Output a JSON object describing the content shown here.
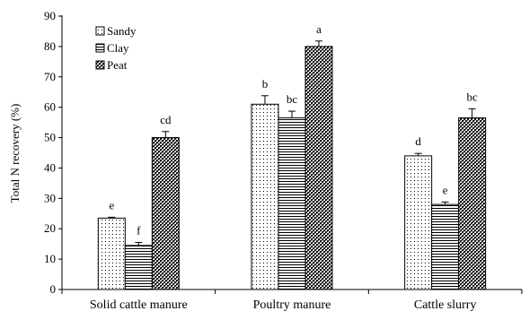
{
  "chart_data": {
    "type": "bar",
    "title": "",
    "xlabel": "",
    "ylabel": "Total N recovery (%)",
    "ylim": [
      0,
      90
    ],
    "yticks": [
      0,
      10,
      20,
      30,
      40,
      50,
      60,
      70,
      80,
      90
    ],
    "categories": [
      "Solid cattle manure",
      "Poultry manure",
      "Cattle slurry"
    ],
    "series": [
      {
        "name": "Sandy",
        "pattern": "dots",
        "values": [
          23.5,
          61.0,
          44.0
        ],
        "errors": [
          0.3,
          2.8,
          0.8
        ],
        "labels": [
          "e",
          "b",
          "d"
        ]
      },
      {
        "name": "Clay",
        "pattern": "horizontal-lines",
        "values": [
          14.5,
          56.5,
          28.0
        ],
        "errors": [
          1.0,
          2.2,
          0.8
        ],
        "labels": [
          "f",
          "bc",
          "e"
        ]
      },
      {
        "name": "Peat",
        "pattern": "cross-hatch",
        "values": [
          50.0,
          80.0,
          56.5
        ],
        "errors": [
          2.0,
          1.8,
          3.0
        ],
        "labels": [
          "cd",
          "a",
          "bc"
        ]
      }
    ],
    "legend": {
      "position": "top-left"
    },
    "grid": false,
    "colors": {
      "axis": "#000000",
      "bar_outline": "#000000",
      "fill": "#ffffff",
      "pattern": "#000000"
    }
  }
}
